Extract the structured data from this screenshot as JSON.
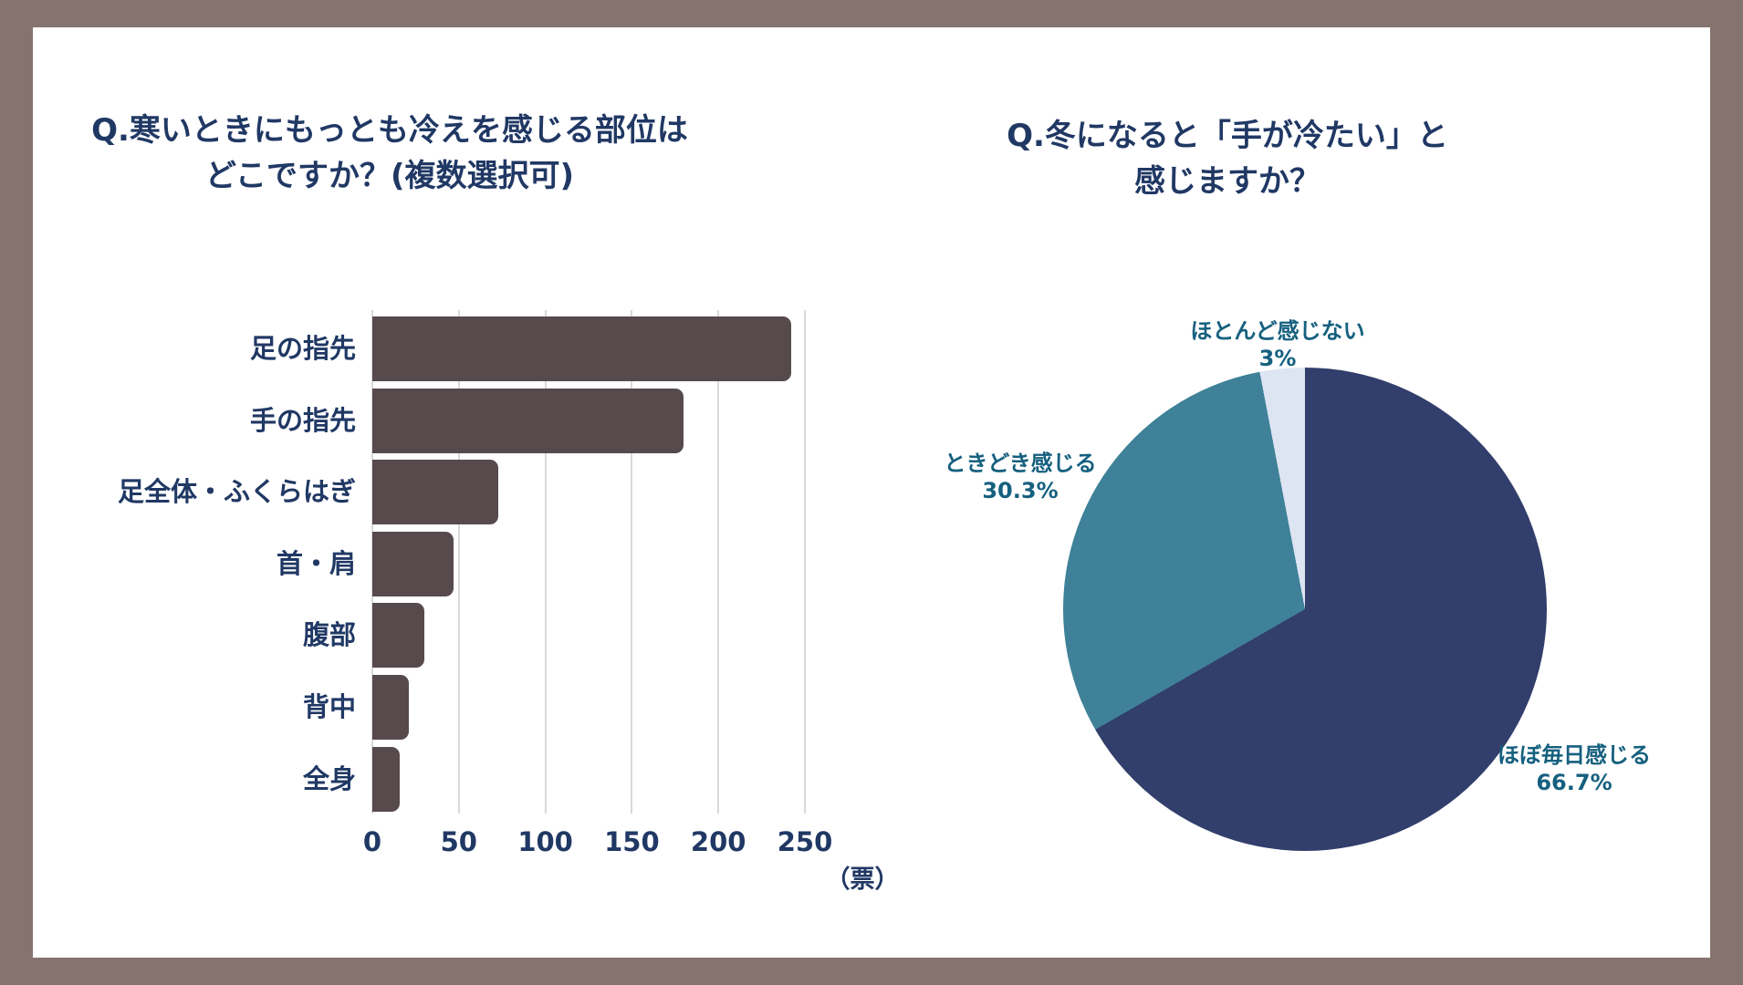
{
  "page": {
    "frame_color": "#85736f",
    "card_color": "#ffffff",
    "title_color": "#203864",
    "axis_label_color": "#203864",
    "pie_label_color": "#16607f",
    "grid_color": "#d9d9d9"
  },
  "chart_data": [
    {
      "type": "bar",
      "orientation": "horizontal",
      "title": "Q.寒いときにもっとも冷えを感じる部位はどこですか？(複数選択可)",
      "title_lines": [
        "Q.寒いときにもっとも冷えを感じる部位は",
        "どこですか？(複数選択可)"
      ],
      "categories": [
        "足の指先",
        "手の指先",
        "足全体・ふくらはぎ",
        "首・肩",
        "腹部",
        "背中",
        "全身"
      ],
      "values": [
        242,
        180,
        73,
        47,
        30,
        21,
        16
      ],
      "xlim": [
        0,
        250
      ],
      "x_ticks": [
        "0",
        "50",
        "100",
        "150",
        "200",
        "250"
      ],
      "unit_label": "（票）",
      "bar_color": "#564a4c",
      "grid": true,
      "legend": "none"
    },
    {
      "type": "pie",
      "title": "Q.冬になると「手が冷たい」と感じますか？",
      "title_lines": [
        "Q.冬になると「手が冷たい」と",
        "感じますか？"
      ],
      "start_angle_deg": 0,
      "direction": "clockwise",
      "slices": [
        {
          "label": "ほぼ毎日感じる",
          "value": 66.7,
          "value_label": "66.7%",
          "color": "#323e6b"
        },
        {
          "label": "ときどき感じる",
          "value": 30.3,
          "value_label": "30.3%",
          "color": "#3e8198"
        },
        {
          "label": "ほとんど感じない",
          "value": 3.0,
          "value_label": "3%",
          "color": "#dde4f2"
        }
      ],
      "legend": "none"
    }
  ]
}
